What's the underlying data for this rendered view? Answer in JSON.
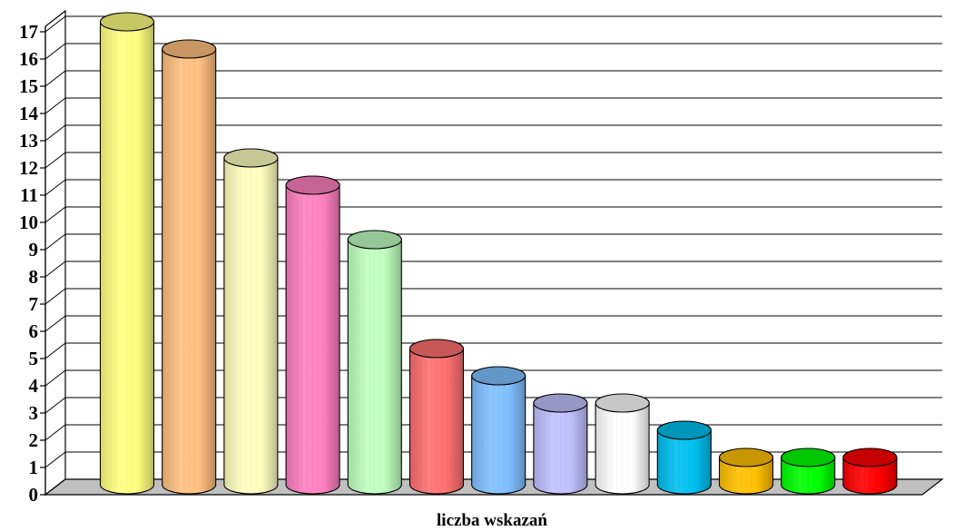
{
  "chart_data": {
    "type": "bar",
    "style": "3d-cylinder",
    "xlabel": "liczba wskazań",
    "ylabel": "",
    "ylim": [
      0,
      17
    ],
    "yticks": [
      0,
      1,
      2,
      3,
      4,
      5,
      6,
      7,
      8,
      9,
      10,
      11,
      12,
      13,
      14,
      15,
      16,
      17
    ],
    "grid": true,
    "legend": "none",
    "values": [
      17,
      16,
      12,
      11,
      9,
      5,
      4,
      3,
      3,
      2,
      1,
      1,
      1
    ],
    "colors": [
      "#ffff80",
      "#ffc080",
      "#ffffc0",
      "#ff80c0",
      "#c0ffc0",
      "#ff7070",
      "#80c0ff",
      "#c0c0ff",
      "#ffffff",
      "#00c0f0",
      "#ffc000",
      "#00ff00",
      "#ff0000"
    ]
  }
}
